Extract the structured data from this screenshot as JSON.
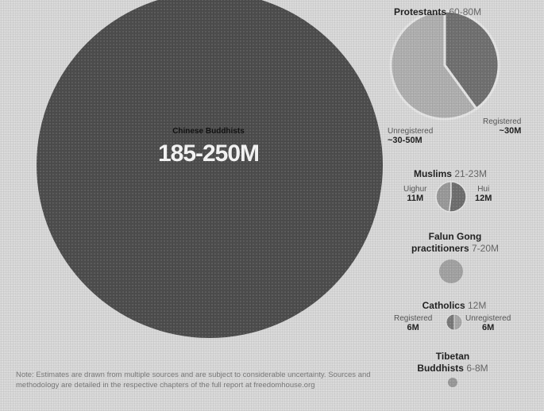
{
  "chart_data": {
    "type": "bubble",
    "groups": [
      {
        "name": "Chinese Buddhists",
        "range": "185-250M",
        "color": "#4d4d4d"
      },
      {
        "name": "Protestants",
        "range": "60-80M",
        "color": "#999999",
        "slices": [
          {
            "name": "Unregistered",
            "value_label": "~30-50M",
            "share": 0.6,
            "color": "#b0b0b0"
          },
          {
            "name": "Registered",
            "value_label": "~30M",
            "share": 0.4,
            "color": "#707070"
          }
        ]
      },
      {
        "name": "Muslims",
        "range": "21-23M",
        "color": "#8f8f8f",
        "slices": [
          {
            "name": "Uighur",
            "value_label": "11M",
            "share": 0.48,
            "color": "#9a9a9a"
          },
          {
            "name": "Hui",
            "value_label": "12M",
            "share": 0.52,
            "color": "#6e6e6e"
          }
        ]
      },
      {
        "name": "Falun Gong practitioners",
        "range": "7-20M",
        "color": "#a3a3a3"
      },
      {
        "name": "Catholics",
        "range": "12M",
        "color": "#8f8f8f",
        "slices": [
          {
            "name": "Registered",
            "value_label": "6M",
            "share": 0.5,
            "color": "#7a7a7a"
          },
          {
            "name": "Unregistered",
            "value_label": "6M",
            "share": 0.5,
            "color": "#a8a8a8"
          }
        ]
      },
      {
        "name": "Tibetan Buddhists",
        "range": "6-8M",
        "color": "#9a9a9a"
      }
    ],
    "labels": {
      "protestants_title": "Protestants",
      "protestants_range": "60-80M",
      "buddhists_title": "Chinese Buddhists",
      "buddhists_range": "185-250M",
      "muslims_title": "Muslims",
      "muslims_range": "21-23M",
      "falun_title_1": "Falun Gong",
      "falun_title_2": "practitioners",
      "falun_range": "7-20M",
      "catholics_title": "Catholics",
      "catholics_range": "12M",
      "tibetan_title_1": "Tibetan",
      "tibetan_title_2": "Buddhists",
      "tibetan_range": "6-8M"
    }
  },
  "footnote": {
    "line1": "Note: Estimates are drawn from multiple sources and are subject to considerable uncertainty. Sources and",
    "line2": "methodology are detailed in the respective chapters of the full report at freedomhouse.org"
  }
}
